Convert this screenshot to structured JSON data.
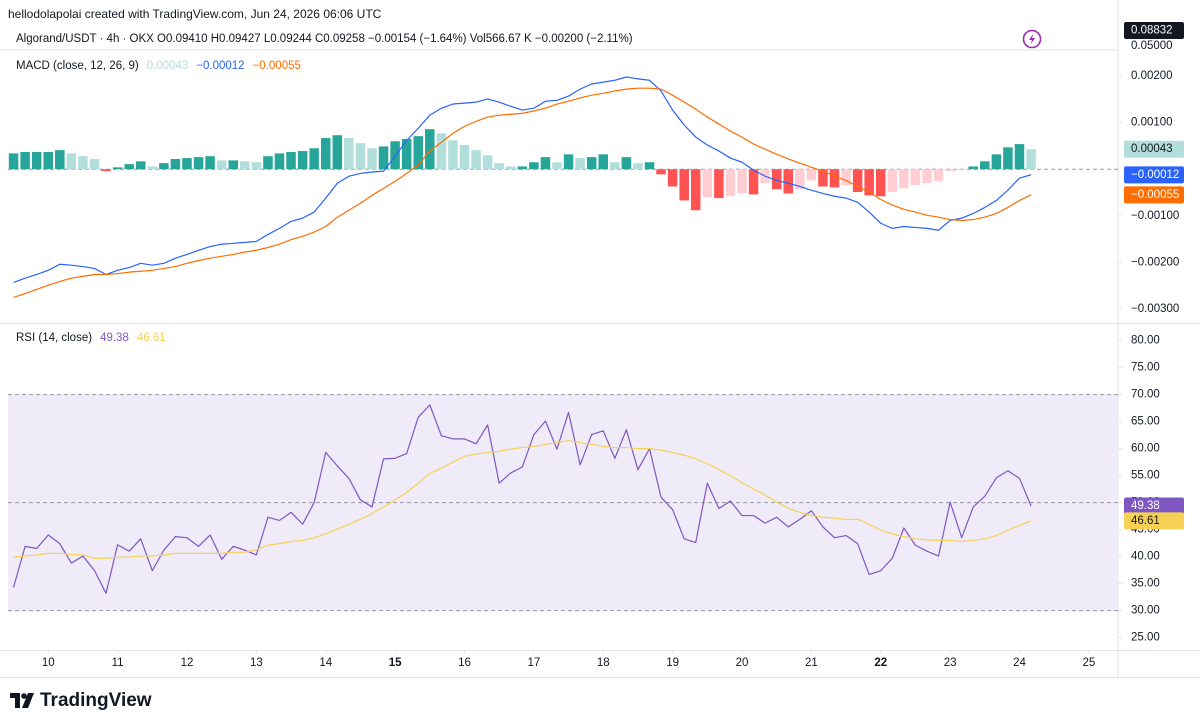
{
  "header": {
    "credit": "hellodolapolai created with TradingView.com, Jun 24, 2026 06:06 UTC",
    "symbol_line": "Algorand/USDT · 4h · OKX  O0.09410  H0.09427  L0.09244  C0.09258  −0.00154 (−1.64%)  Vol566.67 K  −0.00200 (−2.11%)",
    "price_label": "0.08832",
    "price_tick": "0.05000"
  },
  "footer": {
    "brand": "TradingView"
  },
  "chart_data": [
    {
      "type": "macd",
      "title": "MACD (close, 12, 26, 9)",
      "x": [
        9.5,
        9.667,
        9.833,
        10,
        10.167,
        10.333,
        10.5,
        10.667,
        10.833,
        11,
        11.167,
        11.333,
        11.5,
        11.667,
        11.833,
        12,
        12.167,
        12.333,
        12.5,
        12.667,
        12.833,
        13,
        13.167,
        13.333,
        13.5,
        13.667,
        13.833,
        14,
        14.167,
        14.333,
        14.5,
        14.667,
        14.833,
        15,
        15.167,
        15.333,
        15.5,
        15.667,
        15.833,
        16,
        16.167,
        16.333,
        16.5,
        16.667,
        16.833,
        17,
        17.167,
        17.333,
        17.5,
        17.667,
        17.833,
        18,
        18.167,
        18.333,
        18.5,
        18.667,
        18.833,
        19,
        19.167,
        19.333,
        19.5,
        19.667,
        19.833,
        20,
        20.167,
        20.333,
        20.5,
        20.667,
        20.833,
        21,
        21.167,
        21.333,
        21.5,
        21.667,
        21.833,
        22,
        22.167,
        22.333,
        22.5,
        22.667,
        22.833,
        23,
        23.167,
        23.333,
        23.5,
        23.667,
        23.833,
        24,
        24.167
      ],
      "xlim": [
        9.42,
        25.42
      ],
      "ylim": [
        -0.00328,
        0.00256
      ],
      "yticks": [
        {
          "value": 0.002,
          "label": "0.00200"
        },
        {
          "value": 0.001,
          "label": "0.00100"
        },
        {
          "value": -0.001,
          "label": "−0.00100"
        },
        {
          "value": -0.002,
          "label": "−0.00200"
        },
        {
          "value": -0.003,
          "label": "−0.00300"
        }
      ],
      "hlines": [
        0
      ],
      "histogram": {
        "colors": {
          "up_rising": "#26a69a",
          "up_falling": "#b2dfdb",
          "down_falling": "#ff5252",
          "down_rising": "#ffcdd2"
        },
        "last_label": "0.00043",
        "values": [
          0.00034,
          0.00037,
          0.00037,
          0.00037,
          0.00041,
          0.00034,
          0.00028,
          0.00022,
          -4e-05,
          4e-05,
          0.00011,
          0.00017,
          6e-05,
          0.00013,
          0.00022,
          0.00024,
          0.00026,
          0.00028,
          0.00019,
          0.00019,
          0.00017,
          0.00015,
          0.00028,
          0.00034,
          0.00037,
          0.00039,
          0.00045,
          0.00067,
          0.00073,
          0.00067,
          0.00056,
          0.00045,
          0.00049,
          0.0006,
          0.00065,
          0.00071,
          0.00086,
          0.00077,
          0.00062,
          0.00052,
          0.00041,
          0.0003,
          0.00013,
          6e-05,
          6e-05,
          0.00015,
          0.00026,
          0.00015,
          0.00032,
          0.00024,
          0.00026,
          0.00032,
          0.00015,
          0.00026,
          0.00013,
          0.00015,
          -0.00011,
          -0.00037,
          -0.00067,
          -0.00088,
          -0.0006,
          -0.00062,
          -0.00058,
          -0.00052,
          -0.00054,
          -0.0003,
          -0.00043,
          -0.00052,
          -0.00043,
          -0.00024,
          -0.00037,
          -0.00039,
          -0.00034,
          -0.00049,
          -0.00056,
          -0.00058,
          -0.00049,
          -0.00041,
          -0.00034,
          -0.0003,
          -0.00026,
          -4e-05,
          -2e-05,
          6e-05,
          0.00017,
          0.00032,
          0.00047,
          0.00054,
          0.00043
        ]
      },
      "series": [
        {
          "color": "#2962ff",
          "last_label": "−0.00012",
          "values": [
            -0.00243,
            -0.00234,
            -0.00226,
            -0.00217,
            -0.00204,
            -0.00206,
            -0.00209,
            -0.00213,
            -0.00226,
            -0.00217,
            -0.00211,
            -0.00202,
            -0.00206,
            -0.00202,
            -0.00191,
            -0.00183,
            -0.00174,
            -0.00166,
            -0.00161,
            -0.00159,
            -0.00157,
            -0.00155,
            -0.0014,
            -0.00127,
            -0.00112,
            -0.00105,
            -0.00092,
            -0.00062,
            -0.0003,
            -0.00015,
            -9e-05,
            -6e-05,
            -4e-05,
            0.00028,
            0.00062,
            0.00088,
            0.00116,
            0.00131,
            0.0014,
            0.00142,
            0.00144,
            0.00151,
            0.00144,
            0.00135,
            0.00127,
            0.00131,
            0.00146,
            0.00148,
            0.00157,
            0.00172,
            0.00183,
            0.00187,
            0.00191,
            0.00198,
            0.00194,
            0.00191,
            0.00168,
            0.00127,
            0.00095,
            0.00069,
            0.00052,
            0.00039,
            0.00024,
            0.00015,
            -2e-05,
            -0.00015,
            -0.00024,
            -0.0003,
            -0.00037,
            -0.00045,
            -0.00052,
            -0.00058,
            -0.00062,
            -0.00071,
            -0.00092,
            -0.00116,
            -0.00127,
            -0.00123,
            -0.00125,
            -0.00127,
            -0.00131,
            -0.0011,
            -0.00105,
            -0.00095,
            -0.00082,
            -0.00067,
            -0.00045,
            -0.00019,
            -0.00012
          ]
        },
        {
          "color": "#ff6d00",
          "last_label": "−0.00055",
          "values": [
            -0.00275,
            -0.00267,
            -0.00258,
            -0.00249,
            -0.00241,
            -0.00234,
            -0.0023,
            -0.00226,
            -0.00226,
            -0.00224,
            -0.00221,
            -0.00219,
            -0.00217,
            -0.00213,
            -0.00209,
            -0.00202,
            -0.00196,
            -0.00191,
            -0.00187,
            -0.00183,
            -0.00178,
            -0.00174,
            -0.00168,
            -0.00161,
            -0.00151,
            -0.00144,
            -0.00135,
            -0.00123,
            -0.00103,
            -0.00088,
            -0.00073,
            -0.00056,
            -0.00041,
            -0.00026,
            -9e-05,
            9e-05,
            0.00039,
            0.00058,
            0.00077,
            0.00092,
            0.00103,
            0.00112,
            0.00116,
            0.00118,
            0.0012,
            0.00125,
            0.00131,
            0.0014,
            0.00146,
            0.00153,
            0.00159,
            0.00163,
            0.00168,
            0.00172,
            0.00174,
            0.00174,
            0.00172,
            0.00159,
            0.00144,
            0.00129,
            0.00112,
            0.00097,
            0.00082,
            0.00069,
            0.00054,
            0.00043,
            0.00032,
            0.00022,
            0.00013,
            4e-05,
            -4e-05,
            -0.00015,
            -0.00024,
            -0.00037,
            -0.00049,
            -0.00065,
            -0.00077,
            -0.00086,
            -0.00092,
            -0.00099,
            -0.00103,
            -0.00108,
            -0.0011,
            -0.00108,
            -0.00103,
            -0.00095,
            -0.00082,
            -0.00067,
            -0.00055
          ]
        }
      ]
    },
    {
      "type": "rsi",
      "title": "RSI (14, close)",
      "x": [
        9.5,
        9.667,
        9.833,
        10,
        10.167,
        10.333,
        10.5,
        10.667,
        10.833,
        11,
        11.167,
        11.333,
        11.5,
        11.667,
        11.833,
        12,
        12.167,
        12.333,
        12.5,
        12.667,
        12.833,
        13,
        13.167,
        13.333,
        13.5,
        13.667,
        13.833,
        14,
        14.167,
        14.333,
        14.5,
        14.667,
        14.833,
        15,
        15.167,
        15.333,
        15.5,
        15.667,
        15.833,
        16,
        16.167,
        16.333,
        16.5,
        16.667,
        16.833,
        17,
        17.167,
        17.333,
        17.5,
        17.667,
        17.833,
        18,
        18.167,
        18.333,
        18.5,
        18.667,
        18.833,
        19,
        19.167,
        19.333,
        19.5,
        19.667,
        19.833,
        20,
        20.167,
        20.333,
        20.5,
        20.667,
        20.833,
        21,
        21.167,
        21.333,
        21.5,
        21.667,
        21.833,
        22,
        22.167,
        22.333,
        22.5,
        22.667,
        22.833,
        23,
        23.167,
        23.333,
        23.5,
        23.667,
        23.833,
        24,
        24.167
      ],
      "xlim": [
        9.42,
        25.42
      ],
      "xticks": [
        10,
        11,
        12,
        13,
        14,
        {
          "value": 15,
          "bold": true
        },
        16,
        17,
        18,
        19,
        20,
        21,
        {
          "value": 22,
          "bold": true
        },
        23,
        24,
        25
      ],
      "ylim": [
        22.7,
        82.9
      ],
      "yticks": [
        {
          "value": 80,
          "label": "80.00"
        },
        {
          "value": 75,
          "label": "75.00"
        },
        {
          "value": 70,
          "label": "70.00"
        },
        {
          "value": 65,
          "label": "65.00"
        },
        {
          "value": 60,
          "label": "60.00"
        },
        {
          "value": 55,
          "label": "55.00"
        },
        {
          "value": 50,
          "label": "50.00"
        },
        {
          "value": 45,
          "label": "45.00"
        },
        {
          "value": 40,
          "label": "40.00"
        },
        {
          "value": 35,
          "label": "35.00"
        },
        {
          "value": 30,
          "label": "30.00"
        },
        {
          "value": 25,
          "label": "25.00"
        }
      ],
      "band": [
        30,
        70
      ],
      "band_color": "#f0ebf9",
      "hlines": [
        70,
        50,
        30
      ],
      "series": [
        {
          "color": "#7e57c2",
          "last_label": "49.38",
          "values": [
            34.3,
            41.9,
            41.5,
            44,
            42.4,
            38.8,
            40.1,
            37.4,
            33.2,
            42.2,
            41,
            43.3,
            37.4,
            41.2,
            43.7,
            43.5,
            41.9,
            44,
            39.5,
            41.9,
            41.2,
            40.3,
            47.3,
            46.7,
            48.2,
            46,
            50,
            59.3,
            56.8,
            54.5,
            50.5,
            49.2,
            58.1,
            58.2,
            59.1,
            65.8,
            68.1,
            62.4,
            61.8,
            61.8,
            60.9,
            64.4,
            53.6,
            55.5,
            56.6,
            62.6,
            65.1,
            59.9,
            66.7,
            57,
            62.6,
            63.3,
            58.2,
            63.5,
            56.1,
            60,
            51,
            48.7,
            43.3,
            42.6,
            53.6,
            48.9,
            50.3,
            47.6,
            47.6,
            46.2,
            47.3,
            45.5,
            46.9,
            48.5,
            45.5,
            43.5,
            43.9,
            42.4,
            36.7,
            37.4,
            39.7,
            45.3,
            42.1,
            41,
            40.1,
            50.1,
            43.5,
            49.2,
            51.2,
            54.6,
            55.9,
            54.5,
            49.38
          ]
        },
        {
          "color": "#f7d154",
          "last_label": "46.61",
          "values": [
            39.9,
            40.1,
            40.3,
            40.6,
            40.6,
            40.4,
            40.3,
            39.7,
            39.7,
            39.9,
            39.9,
            40.1,
            40.1,
            40.3,
            40.6,
            40.6,
            40.6,
            40.6,
            40.6,
            40.8,
            40.8,
            41.3,
            42.1,
            42.4,
            42.8,
            43,
            43.5,
            44.2,
            45.1,
            46,
            46.9,
            48,
            49.2,
            50.5,
            51.9,
            53.6,
            55.4,
            56.4,
            57.5,
            58.6,
            59,
            59.3,
            59.5,
            59.9,
            60.2,
            60.4,
            60.8,
            61.1,
            61.5,
            61.1,
            60.8,
            60.4,
            60.2,
            60.2,
            60,
            60,
            59.7,
            59.3,
            58.8,
            58.1,
            57.2,
            56.1,
            55,
            53.7,
            52.5,
            51.4,
            50.1,
            48.9,
            48.2,
            47.6,
            47.3,
            47.1,
            46.9,
            46.9,
            46,
            44.9,
            44.2,
            43.7,
            43.3,
            43.1,
            43,
            43,
            42.8,
            43,
            43.3,
            43.9,
            44.9,
            45.8,
            46.61
          ]
        }
      ]
    }
  ]
}
